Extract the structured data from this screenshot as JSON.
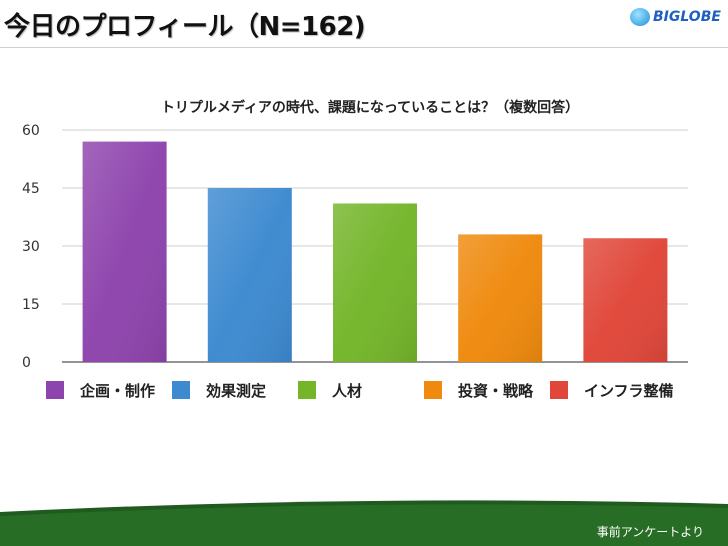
{
  "page": {
    "title": "今日のプロフィール（N=162)",
    "logo_text": "BIGLOBE",
    "footer_note": "事前アンケートより"
  },
  "colors": {
    "purple": "#8e44ad",
    "blue": "#3d8ad0",
    "green": "#74b52a",
    "orange": "#ef8a0e",
    "red": "#e0473a",
    "footer_green": "#1f5a1f"
  },
  "chart_data": {
    "type": "bar",
    "title": "トリプルメディアの時代、課題になっていることは？（複数回答）",
    "categories": [
      "企画・制作",
      "効果測定",
      "人材",
      "投資・戦略",
      "インフラ整備"
    ],
    "values": [
      57,
      45,
      41,
      33,
      32
    ],
    "colors": [
      "#8e44ad",
      "#3d8ad0",
      "#74b52a",
      "#ef8a0e",
      "#e0473a"
    ],
    "yticks": [
      0,
      15,
      30,
      45,
      60
    ],
    "ylim": [
      0,
      60
    ],
    "grid": true,
    "legend": "bottom"
  }
}
